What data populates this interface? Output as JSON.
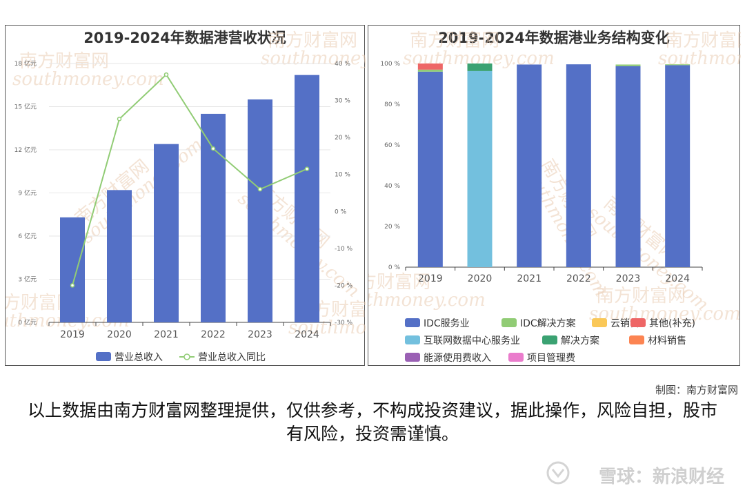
{
  "chart_data": [
    {
      "type": "bar",
      "title": "2019-2024年数据港营收状况",
      "categories": [
        "2019",
        "2020",
        "2021",
        "2022",
        "2023",
        "2024"
      ],
      "series": [
        {
          "name": "营业总收入",
          "type": "bar",
          "axis": "left",
          "values": [
            7.3,
            9.2,
            12.4,
            14.5,
            15.5,
            17.2
          ],
          "color": "#5470c6"
        },
        {
          "name": "营业总收入同比",
          "type": "line",
          "axis": "right",
          "values": [
            -20,
            25,
            37,
            17,
            6,
            11.5
          ],
          "color": "#91cc75"
        }
      ],
      "yaxis_left": {
        "min": 0,
        "max": 18,
        "ticks": [
          "0 亿元",
          "3 亿元",
          "6 亿元",
          "9 亿元",
          "12 亿元",
          "15 亿元",
          "18 亿元"
        ]
      },
      "yaxis_right": {
        "min": -30,
        "max": 40,
        "ticks": [
          "-30 %",
          "-20 %",
          "-10 %",
          "0 %",
          "10 %",
          "20 %",
          "30 %",
          "40 %"
        ]
      },
      "grid": true,
      "legend": "bottom"
    },
    {
      "type": "bar",
      "title": "2019-2024年数据港业务结构变化",
      "stacked": true,
      "categories": [
        "2019",
        "2020",
        "2021",
        "2022",
        "2023",
        "2024"
      ],
      "series": [
        {
          "name": "IDC服务业",
          "color": "#5470c6",
          "values": [
            96,
            0,
            99.5,
            99.6,
            98.7,
            99.2
          ]
        },
        {
          "name": "IDC解决方案",
          "color": "#91cc75",
          "values": [
            1,
            0,
            0,
            0,
            0.8,
            0.4
          ]
        },
        {
          "name": "云销售",
          "color": "#fac858",
          "values": [
            0,
            0,
            0,
            0,
            0,
            0
          ]
        },
        {
          "name": "其他(补充)",
          "color": "#ee6666",
          "values": [
            3,
            0,
            0,
            0,
            0,
            0
          ]
        },
        {
          "name": "互联网数据中心服务业",
          "color": "#73c0de",
          "values": [
            0,
            96.3,
            0,
            0,
            0,
            0
          ]
        },
        {
          "name": "解决方案",
          "color": "#3ba272",
          "values": [
            0,
            3.7,
            0,
            0,
            0,
            0
          ]
        },
        {
          "name": "材料销售",
          "color": "#fc8452",
          "values": [
            0,
            0,
            0,
            0,
            0,
            0
          ]
        },
        {
          "name": "能源使用费收入",
          "color": "#9a60b4",
          "values": [
            0,
            0,
            0,
            0,
            0,
            0
          ]
        },
        {
          "name": "项目管理费",
          "color": "#ea7ccc",
          "values": [
            0,
            0,
            0,
            0,
            0,
            0
          ]
        }
      ],
      "yaxis": {
        "min": 0,
        "max": 100,
        "ticks": [
          "0 %",
          "20 %",
          "40 %",
          "60 %",
          "80 %",
          "100 %"
        ]
      },
      "grid": false,
      "legend": "bottom"
    }
  ],
  "credit": "制图：南方财富网",
  "disclaimer": "以上数据由南方财富网整理提供，仅供参考，不构成投资建议，据此操作，风险自担，股市有风险，投资需谨慎。",
  "brand": "雪球：新浪财经",
  "watermark": {
    "cn": "南方财富网",
    "en": "southmoney.com"
  }
}
